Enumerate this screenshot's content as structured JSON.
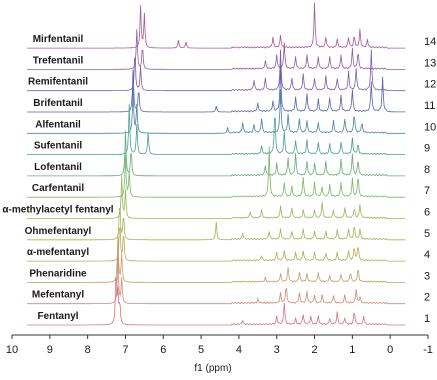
{
  "chart_data": {
    "type": "line",
    "subtype": "stacked-nmr-spectra",
    "title": "",
    "xlabel": "f1 (ppm)",
    "ylabel": "",
    "xlim": [
      10,
      -1
    ],
    "x_reversed": true,
    "x_ticks": [
      "10",
      "9",
      "8",
      "7",
      "6",
      "5",
      "4",
      "3",
      "2",
      "1",
      "0",
      "-1"
    ],
    "grid": false,
    "series": [
      {
        "name": "Fentanyl",
        "index": "1",
        "color": "#d8747e",
        "peaks": [
          [
            7.25,
            55
          ],
          [
            7.2,
            30
          ],
          [
            7.15,
            20
          ],
          [
            3.9,
            4
          ],
          [
            3.0,
            8
          ],
          [
            2.8,
            22
          ],
          [
            2.5,
            6
          ],
          [
            2.3,
            10
          ],
          [
            2.1,
            8
          ],
          [
            1.9,
            8
          ],
          [
            1.6,
            6
          ],
          [
            1.4,
            12
          ],
          [
            1.2,
            6
          ],
          [
            0.95,
            14
          ],
          [
            0.7,
            8
          ]
        ]
      },
      {
        "name": "Mefentanyl",
        "index": "2",
        "color": "#cf8a76",
        "peaks": [
          [
            7.2,
            48
          ],
          [
            7.1,
            25
          ],
          [
            3.5,
            4
          ],
          [
            2.9,
            10
          ],
          [
            2.75,
            18
          ],
          [
            2.4,
            10
          ],
          [
            2.2,
            12
          ],
          [
            2.0,
            8
          ],
          [
            1.8,
            8
          ],
          [
            1.5,
            8
          ],
          [
            1.2,
            8
          ],
          [
            0.9,
            14
          ],
          [
            0.8,
            6
          ]
        ]
      },
      {
        "name": "Phenaridine",
        "index": "3",
        "color": "#c39e6c",
        "peaks": [
          [
            7.2,
            45
          ],
          [
            7.1,
            28
          ],
          [
            3.3,
            4
          ],
          [
            2.9,
            8
          ],
          [
            2.7,
            14
          ],
          [
            2.4,
            10
          ],
          [
            2.2,
            8
          ],
          [
            1.9,
            10
          ],
          [
            1.6,
            6
          ],
          [
            1.3,
            8
          ],
          [
            1.05,
            10
          ],
          [
            0.85,
            14
          ]
        ]
      },
      {
        "name": "α-mefentanyl",
        "index": "4",
        "color": "#b5ab5c",
        "peaks": [
          [
            7.15,
            42
          ],
          [
            7.05,
            30
          ],
          [
            3.4,
            5
          ],
          [
            3.0,
            8
          ],
          [
            2.8,
            10
          ],
          [
            2.5,
            8
          ],
          [
            2.3,
            10
          ],
          [
            2.0,
            8
          ],
          [
            1.7,
            8
          ],
          [
            1.4,
            8
          ],
          [
            1.1,
            10
          ],
          [
            0.95,
            14
          ],
          [
            0.85,
            16
          ]
        ]
      },
      {
        "name": "Ohmefentanyl",
        "index": "5",
        "color": "#a6b356",
        "peaks": [
          [
            7.15,
            40
          ],
          [
            7.05,
            26
          ],
          [
            4.6,
            18
          ],
          [
            3.9,
            6
          ],
          [
            3.2,
            8
          ],
          [
            2.9,
            10
          ],
          [
            2.6,
            8
          ],
          [
            2.3,
            10
          ],
          [
            2.0,
            8
          ],
          [
            1.7,
            8
          ],
          [
            1.4,
            10
          ],
          [
            1.1,
            10
          ],
          [
            0.95,
            14
          ],
          [
            0.8,
            10
          ]
        ]
      },
      {
        "name": "α-methylacetyl fentanyl",
        "index": "6",
        "color": "#95b85a",
        "peaks": [
          [
            7.1,
            42
          ],
          [
            7.0,
            28
          ],
          [
            3.7,
            6
          ],
          [
            3.4,
            8
          ],
          [
            2.9,
            12
          ],
          [
            2.6,
            10
          ],
          [
            2.3,
            8
          ],
          [
            2.0,
            8
          ],
          [
            1.8,
            16
          ],
          [
            1.5,
            8
          ],
          [
            1.2,
            10
          ],
          [
            0.95,
            10
          ],
          [
            0.8,
            14
          ]
        ]
      },
      {
        "name": "Carfentanil",
        "index": "7",
        "color": "#7fb66a",
        "peaks": [
          [
            7.0,
            42
          ],
          [
            6.9,
            25
          ],
          [
            3.2,
            50
          ],
          [
            2.8,
            14
          ],
          [
            2.6,
            10
          ],
          [
            2.3,
            20
          ],
          [
            2.0,
            14
          ],
          [
            1.8,
            10
          ],
          [
            1.6,
            12
          ],
          [
            1.3,
            14
          ],
          [
            1.0,
            18
          ],
          [
            0.85,
            22
          ]
        ]
      },
      {
        "name": "Lofentanil",
        "index": "8",
        "color": "#62ac7a",
        "peaks": [
          [
            7.0,
            45
          ],
          [
            6.85,
            28
          ],
          [
            3.3,
            10
          ],
          [
            3.0,
            12
          ],
          [
            2.7,
            18
          ],
          [
            2.5,
            22
          ],
          [
            2.2,
            14
          ],
          [
            2.0,
            12
          ],
          [
            1.7,
            14
          ],
          [
            1.3,
            16
          ],
          [
            1.0,
            22
          ],
          [
            0.85,
            16
          ]
        ]
      },
      {
        "name": "Sufentanil",
        "index": "9",
        "color": "#4a9e92",
        "peaks": [
          [
            6.9,
            50
          ],
          [
            6.7,
            30
          ],
          [
            6.4,
            22
          ],
          [
            3.4,
            8
          ],
          [
            3.05,
            46
          ],
          [
            2.8,
            22
          ],
          [
            2.5,
            14
          ],
          [
            2.2,
            14
          ],
          [
            1.9,
            12
          ],
          [
            1.6,
            10
          ],
          [
            1.3,
            12
          ],
          [
            1.0,
            16
          ],
          [
            0.85,
            10
          ]
        ]
      },
      {
        "name": "Alfentanil",
        "index": "10",
        "color": "#4a82a8",
        "peaks": [
          [
            6.8,
            45
          ],
          [
            6.7,
            28
          ],
          [
            4.3,
            6
          ],
          [
            3.9,
            10
          ],
          [
            3.6,
            8
          ],
          [
            3.4,
            14
          ],
          [
            2.9,
            44
          ],
          [
            2.7,
            18
          ],
          [
            2.4,
            14
          ],
          [
            2.2,
            12
          ],
          [
            1.9,
            10
          ],
          [
            1.5,
            12
          ],
          [
            1.2,
            14
          ],
          [
            0.95,
            20
          ],
          [
            0.75,
            10
          ]
        ]
      },
      {
        "name": "Brifentanil",
        "index": "11",
        "color": "#5a63ad",
        "peaks": [
          [
            6.8,
            42
          ],
          [
            6.65,
            24
          ],
          [
            4.6,
            6
          ],
          [
            3.5,
            8
          ],
          [
            3.1,
            10
          ],
          [
            2.9,
            46
          ],
          [
            2.5,
            14
          ],
          [
            2.2,
            18
          ],
          [
            1.9,
            12
          ],
          [
            1.6,
            14
          ],
          [
            1.3,
            16
          ],
          [
            1.0,
            22
          ],
          [
            0.5,
            30
          ],
          [
            0.2,
            34
          ]
        ]
      },
      {
        "name": "Remifentanil",
        "index": "12",
        "color": "#7a5fae",
        "peaks": [
          [
            6.75,
            42
          ],
          [
            6.6,
            24
          ],
          [
            3.6,
            10
          ],
          [
            3.3,
            12
          ],
          [
            2.9,
            40
          ],
          [
            2.6,
            12
          ],
          [
            2.3,
            16
          ],
          [
            2.0,
            12
          ],
          [
            1.7,
            14
          ],
          [
            1.4,
            12
          ],
          [
            1.1,
            18
          ],
          [
            0.9,
            22
          ],
          [
            0.5,
            40
          ]
        ]
      },
      {
        "name": "Trefentanil",
        "index": "13",
        "color": "#945aa8",
        "peaks": [
          [
            6.7,
            40
          ],
          [
            6.55,
            24
          ],
          [
            3.3,
            8
          ],
          [
            3.0,
            14
          ],
          [
            2.8,
            26
          ],
          [
            2.5,
            12
          ],
          [
            2.2,
            14
          ],
          [
            1.9,
            12
          ],
          [
            1.6,
            12
          ],
          [
            1.3,
            14
          ],
          [
            1.0,
            20
          ],
          [
            0.85,
            18
          ]
        ]
      },
      {
        "name": "Mirfentanil",
        "index": "14",
        "color": "#a956a0",
        "peaks": [
          [
            6.6,
            42
          ],
          [
            6.5,
            34
          ],
          [
            5.6,
            8
          ],
          [
            5.4,
            6
          ],
          [
            3.1,
            10
          ],
          [
            2.9,
            12
          ],
          [
            2.0,
            44
          ],
          [
            1.7,
            10
          ],
          [
            1.4,
            8
          ],
          [
            1.1,
            10
          ],
          [
            0.95,
            12
          ],
          [
            0.8,
            18
          ],
          [
            0.6,
            8
          ]
        ]
      }
    ]
  }
}
